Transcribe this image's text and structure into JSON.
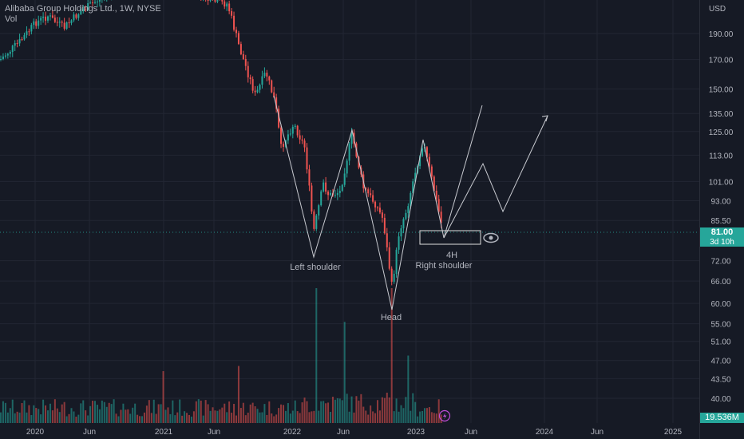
{
  "legend": {
    "symbol": "Alibaba Group Holdings Ltd., 1W, NYSE",
    "volume_label": "Vol"
  },
  "axis": {
    "currency": "USD",
    "current_price": "81.00",
    "countdown": "3d 10h",
    "volume_value": "19.536M"
  },
  "colors": {
    "background": "#161a25",
    "up": "#26a69a",
    "down": "#ef5350",
    "grid": "#222633",
    "pattern_line": "#c8cad0"
  },
  "chart_data": {
    "type": "candlestick",
    "title": "Alibaba Group Holdings Ltd., 1W, NYSE",
    "y_ticks": [
      190.0,
      170.0,
      150.0,
      135.0,
      125.0,
      113.0,
      101.0,
      93.0,
      85.5,
      72.0,
      66.0,
      60.0,
      55.0,
      51.0,
      47.0,
      43.5,
      40.0
    ],
    "x_ticks": [
      "2020",
      "Jun",
      "2021",
      "Jun",
      "2022",
      "Jun",
      "2023",
      "Jun",
      "2024",
      "Jun",
      "2025"
    ],
    "last_price": 81.0,
    "scale": "log",
    "annotations": [
      "Left shoulder",
      "Head",
      "Right shoulder",
      "4H"
    ],
    "pattern": "inverse head and shoulders"
  }
}
